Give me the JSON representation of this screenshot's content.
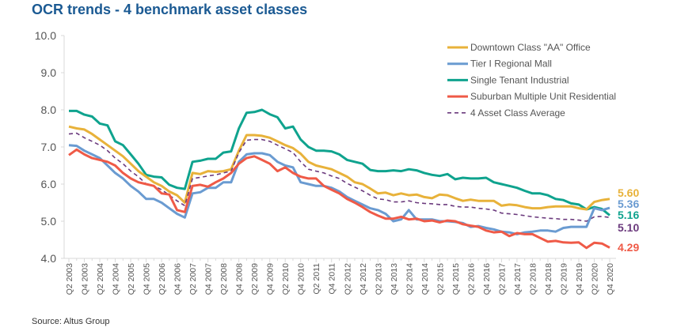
{
  "chart_data": {
    "type": "line",
    "title": "OCR trends - 4 benchmark asset classes",
    "source": "Source:  Altus Group",
    "xlabel": "",
    "ylabel": "",
    "ylim": [
      4.0,
      10.0
    ],
    "yticks": [
      "10.0",
      "9.0",
      "8.0",
      "7.0",
      "6.0",
      "5.0",
      "4.0"
    ],
    "ytick_values": [
      10,
      9,
      8,
      7,
      6,
      5,
      4
    ],
    "x_start": "Q2 2003",
    "x_end": "Q4 2020",
    "x_frequency": "quarterly",
    "xtick_labels": [
      "Q2 2003",
      "Q4 2003",
      "Q2 2004",
      "Q4 2004",
      "Q2 2005",
      "Q4 2005",
      "Q2 2006",
      "Q4 2006",
      "Q2 2007",
      "Q4 2007",
      "Q2 2008",
      "Q4 2008",
      "Q2 2009",
      "Q4 2009",
      "Q2 2010",
      "Q4 2010",
      "Q2 2011",
      "Q4 2011",
      "Q2 2012",
      "Q4 2012",
      "Q2 2013",
      "Q4 2013",
      "Q2 2014",
      "Q4 2014",
      "Q2 2015",
      "Q4 2015",
      "Q2 2016",
      "Q4 2016",
      "Q2 2017",
      "Q4 2017",
      "Q2 2018",
      "Q4 2018",
      "Q2 2019",
      "Q4 2019",
      "Q2 2020",
      "Q4 2020"
    ],
    "grid": false,
    "legend_placement": "top-right",
    "series": [
      {
        "name": "Downtown Class \"AA\" Office",
        "color": "#E8B23A",
        "style": "solid",
        "end_label": "5.60",
        "values": [
          7.55,
          7.5,
          7.47,
          7.35,
          7.2,
          7.05,
          6.9,
          6.75,
          6.55,
          6.35,
          6.2,
          6.05,
          5.95,
          5.8,
          5.7,
          5.5,
          6.3,
          6.27,
          6.35,
          6.33,
          6.35,
          6.4,
          6.9,
          7.32,
          7.32,
          7.3,
          7.25,
          7.15,
          7.05,
          6.97,
          6.82,
          6.6,
          6.5,
          6.45,
          6.4,
          6.3,
          6.2,
          6.05,
          6.0,
          5.88,
          5.75,
          5.77,
          5.7,
          5.75,
          5.7,
          5.72,
          5.65,
          5.62,
          5.72,
          5.7,
          5.62,
          5.55,
          5.58,
          5.55,
          5.55,
          5.55,
          5.42,
          5.45,
          5.43,
          5.38,
          5.35,
          5.35,
          5.38,
          5.4,
          5.4,
          5.4,
          5.35,
          5.32,
          5.52,
          5.57,
          5.6
        ]
      },
      {
        "name": "Tier I Regional Mall",
        "color": "#6A9BD1",
        "style": "solid",
        "end_label": "5.36",
        "values": [
          7.05,
          7.03,
          6.9,
          6.8,
          6.7,
          6.5,
          6.3,
          6.15,
          5.95,
          5.8,
          5.6,
          5.6,
          5.5,
          5.35,
          5.2,
          5.1,
          5.75,
          5.78,
          5.9,
          5.9,
          6.05,
          6.05,
          6.6,
          6.8,
          6.83,
          6.83,
          6.78,
          6.6,
          6.5,
          6.45,
          6.05,
          6.0,
          5.95,
          5.95,
          5.9,
          5.8,
          5.65,
          5.55,
          5.45,
          5.35,
          5.3,
          5.2,
          5.0,
          5.05,
          5.3,
          5.05,
          5.05,
          5.05,
          5.0,
          5.0,
          4.98,
          4.95,
          4.85,
          4.87,
          4.82,
          4.78,
          4.72,
          4.7,
          4.65,
          4.7,
          4.72,
          4.75,
          4.75,
          4.72,
          4.82,
          4.85,
          4.85,
          4.85,
          5.35,
          5.3,
          5.36
        ]
      },
      {
        "name": "Single Tenant Industrial",
        "color": "#0FA38E",
        "style": "solid",
        "end_label": "5.16",
        "values": [
          7.97,
          7.97,
          7.87,
          7.82,
          7.63,
          7.58,
          7.15,
          7.05,
          6.8,
          6.55,
          6.25,
          6.2,
          6.18,
          5.98,
          5.9,
          5.87,
          6.6,
          6.63,
          6.68,
          6.68,
          6.85,
          6.88,
          7.5,
          7.92,
          7.94,
          8.0,
          7.88,
          7.8,
          7.5,
          7.55,
          7.2,
          7.0,
          6.9,
          6.9,
          6.88,
          6.8,
          6.65,
          6.6,
          6.55,
          6.38,
          6.35,
          6.35,
          6.37,
          6.35,
          6.4,
          6.37,
          6.3,
          6.25,
          6.22,
          6.27,
          6.13,
          6.17,
          6.15,
          6.15,
          6.17,
          6.05,
          6.0,
          5.95,
          5.9,
          5.82,
          5.75,
          5.75,
          5.7,
          5.6,
          5.57,
          5.48,
          5.45,
          5.32,
          5.38,
          5.33,
          5.16
        ]
      },
      {
        "name": "Suburban Multiple Unit Residential",
        "color": "#EF5A47",
        "style": "solid",
        "end_label": "4.29",
        "values": [
          6.78,
          6.93,
          6.8,
          6.7,
          6.65,
          6.6,
          6.5,
          6.3,
          6.15,
          6.05,
          6.0,
          5.95,
          5.75,
          5.72,
          5.3,
          5.25,
          5.95,
          5.98,
          5.93,
          6.05,
          6.15,
          6.3,
          6.55,
          6.7,
          6.75,
          6.65,
          6.55,
          6.35,
          6.45,
          6.3,
          6.2,
          6.15,
          6.15,
          5.95,
          5.85,
          5.75,
          5.6,
          5.5,
          5.38,
          5.25,
          5.15,
          5.07,
          5.07,
          5.12,
          5.05,
          5.07,
          5.0,
          5.02,
          4.97,
          5.02,
          5.0,
          4.92,
          4.88,
          4.85,
          4.75,
          4.7,
          4.72,
          4.6,
          4.68,
          4.65,
          4.65,
          4.55,
          4.45,
          4.47,
          4.43,
          4.42,
          4.43,
          4.28,
          4.42,
          4.4,
          4.29
        ]
      },
      {
        "name": "4 Asset Class Average",
        "color": "#6B3A7D",
        "style": "dashed",
        "end_label": "5.10",
        "values": [
          7.35,
          7.37,
          7.25,
          7.15,
          7.05,
          6.9,
          6.7,
          6.55,
          6.35,
          6.2,
          6.0,
          5.95,
          5.85,
          5.7,
          5.55,
          5.42,
          6.15,
          6.18,
          6.22,
          6.25,
          6.3,
          6.35,
          6.85,
          7.18,
          7.2,
          7.2,
          7.15,
          7.05,
          6.95,
          6.85,
          6.6,
          6.4,
          6.35,
          6.3,
          6.22,
          6.15,
          6.02,
          5.92,
          5.82,
          5.7,
          5.6,
          5.58,
          5.52,
          5.52,
          5.55,
          5.5,
          5.48,
          5.47,
          5.45,
          5.45,
          5.4,
          5.38,
          5.38,
          5.35,
          5.33,
          5.3,
          5.22,
          5.2,
          5.18,
          5.15,
          5.12,
          5.1,
          5.08,
          5.07,
          5.05,
          5.05,
          5.03,
          5.0,
          5.12,
          5.13,
          5.1
        ]
      }
    ]
  }
}
